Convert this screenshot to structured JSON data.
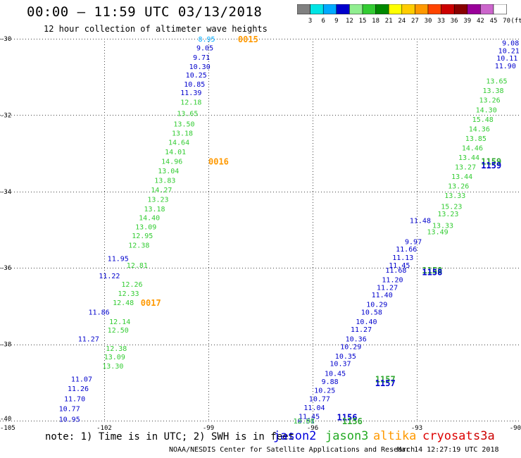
{
  "header": {
    "title": "00:00 – 11:59 UTC 03/13/2018",
    "subtitle": "12 hour collection of altimeter wave heights"
  },
  "colorbar": {
    "labels": [
      "3",
      "6",
      "9",
      "12",
      "15",
      "18",
      "21",
      "24",
      "27",
      "30",
      "33",
      "36",
      "39",
      "42",
      "45",
      "70",
      "(ft)"
    ],
    "colors": [
      "#808080",
      "#00e5e5",
      "#00aaff",
      "#0000cc",
      "#90ee90",
      "#33cc33",
      "#008800",
      "#ffff00",
      "#ffcc00",
      "#ff9900",
      "#ff4400",
      "#cc0000",
      "#880000",
      "#990099",
      "#cc66cc",
      "#ffffff"
    ]
  },
  "chart_data": {
    "type": "scatter",
    "title": "",
    "xlabel": "",
    "ylabel": "",
    "xlim": [
      -105,
      -90
    ],
    "ylim": [
      -40,
      -30
    ],
    "x_ticks": [
      "-105",
      "-102",
      "-99",
      "-96",
      "-93",
      "-90"
    ],
    "y_ticks": [
      "-30",
      "-32",
      "-34",
      "-36",
      "-38",
      "-40"
    ],
    "grid": true,
    "series": [
      {
        "name": "jason2",
        "color": "#0000cc",
        "points": [
          {
            "x": -99.1,
            "y": -30.23,
            "label": "9.05"
          },
          {
            "x": -99.2,
            "y": -30.48,
            "label": "9.71"
          },
          {
            "x": -99.25,
            "y": -30.72,
            "label": "10.30"
          },
          {
            "x": -99.35,
            "y": -30.94,
            "label": "10.25"
          },
          {
            "x": -99.4,
            "y": -31.18,
            "label": "10.85"
          },
          {
            "x": -99.5,
            "y": -31.4,
            "label": "11.39"
          },
          {
            "x": -101.6,
            "y": -35.75,
            "label": "11.95"
          },
          {
            "x": -101.85,
            "y": -36.2,
            "label": "11.22"
          },
          {
            "x": -102.15,
            "y": -37.15,
            "label": "11.86"
          },
          {
            "x": -102.45,
            "y": -37.85,
            "label": "11.27"
          },
          {
            "x": -102.65,
            "y": -38.9,
            "label": "11.07"
          },
          {
            "x": -102.75,
            "y": -39.15,
            "label": "11.26"
          },
          {
            "x": -102.85,
            "y": -39.42,
            "label": "11.70"
          },
          {
            "x": -103.0,
            "y": -39.68,
            "label": "10.77"
          },
          {
            "x": -103.0,
            "y": -39.95,
            "label": "10.95"
          },
          {
            "x": -92.9,
            "y": -34.75,
            "label": "11.48"
          },
          {
            "x": -93.1,
            "y": -35.3,
            "label": "9.97"
          },
          {
            "x": -93.3,
            "y": -35.5,
            "label": "11.66"
          },
          {
            "x": -93.4,
            "y": -35.72,
            "label": "11.13"
          },
          {
            "x": -93.5,
            "y": -35.92,
            "label": "11.45"
          },
          {
            "x": -93.6,
            "y": -36.05,
            "label": "11.68"
          },
          {
            "x": -93.7,
            "y": -36.3,
            "label": "11.20"
          },
          {
            "x": -93.85,
            "y": -36.5,
            "label": "11.27"
          },
          {
            "x": -94.0,
            "y": -36.7,
            "label": "11.40"
          },
          {
            "x": -94.15,
            "y": -36.95,
            "label": "10.29"
          },
          {
            "x": -94.3,
            "y": -37.15,
            "label": "10.58"
          },
          {
            "x": -94.45,
            "y": -37.4,
            "label": "10.40"
          },
          {
            "x": -94.6,
            "y": -37.6,
            "label": "11.27"
          },
          {
            "x": -94.75,
            "y": -37.85,
            "label": "10.36"
          },
          {
            "x": -94.9,
            "y": -38.05,
            "label": "10.29"
          },
          {
            "x": -95.05,
            "y": -38.3,
            "label": "10.35"
          },
          {
            "x": -95.2,
            "y": -38.5,
            "label": "10.37"
          },
          {
            "x": -95.35,
            "y": -38.75,
            "label": "10.45"
          },
          {
            "x": -95.5,
            "y": -38.97,
            "label": "9.88"
          },
          {
            "x": -95.65,
            "y": -39.2,
            "label": "10.25"
          },
          {
            "x": -95.8,
            "y": -39.42,
            "label": "10.77"
          },
          {
            "x": -95.95,
            "y": -39.65,
            "label": "11.04"
          },
          {
            "x": -96.1,
            "y": -39.88,
            "label": "11.45"
          },
          {
            "x": -96.25,
            "y": -40.0,
            "label": "10.51"
          },
          {
            "x": -90.3,
            "y": -30.1,
            "label": "9.08"
          },
          {
            "x": -90.35,
            "y": -30.3,
            "label": "10.21"
          },
          {
            "x": -90.4,
            "y": -30.5,
            "label": "10.11"
          },
          {
            "x": -90.45,
            "y": -30.7,
            "label": "11.90"
          }
        ]
      },
      {
        "name": "jason3",
        "color": "#33cc33",
        "points": [
          {
            "x": -99.5,
            "y": -31.65,
            "label": "12.18"
          },
          {
            "x": -99.6,
            "y": -31.95,
            "label": "13.65"
          },
          {
            "x": -99.7,
            "y": -32.22,
            "label": "13.50"
          },
          {
            "x": -99.75,
            "y": -32.46,
            "label": "13.18"
          },
          {
            "x": -99.85,
            "y": -32.7,
            "label": "14.64"
          },
          {
            "x": -99.95,
            "y": -32.95,
            "label": "14.01"
          },
          {
            "x": -100.05,
            "y": -33.2,
            "label": "14.96"
          },
          {
            "x": -100.15,
            "y": -33.45,
            "label": "13.04"
          },
          {
            "x": -100.25,
            "y": -33.7,
            "label": "13.83"
          },
          {
            "x": -100.35,
            "y": -33.95,
            "label": "14.27"
          },
          {
            "x": -100.45,
            "y": -34.2,
            "label": "13.23"
          },
          {
            "x": -100.55,
            "y": -34.45,
            "label": "13.18"
          },
          {
            "x": -100.7,
            "y": -34.68,
            "label": "14.40"
          },
          {
            "x": -100.8,
            "y": -34.92,
            "label": "13.09"
          },
          {
            "x": -100.9,
            "y": -35.15,
            "label": "12.95"
          },
          {
            "x": -101.0,
            "y": -35.4,
            "label": "12.38"
          },
          {
            "x": -101.05,
            "y": -35.92,
            "label": "12.81"
          },
          {
            "x": -101.2,
            "y": -36.42,
            "label": "12.26"
          },
          {
            "x": -101.3,
            "y": -36.66,
            "label": "12.33"
          },
          {
            "x": -101.45,
            "y": -36.9,
            "label": "12.48"
          },
          {
            "x": -101.55,
            "y": -37.4,
            "label": "12.14"
          },
          {
            "x": -101.6,
            "y": -37.62,
            "label": "12.50"
          },
          {
            "x": -101.65,
            "y": -38.1,
            "label": "12.38"
          },
          {
            "x": -101.7,
            "y": -38.32,
            "label": "13.09"
          },
          {
            "x": -101.75,
            "y": -38.56,
            "label": "13.30"
          },
          {
            "x": -96.25,
            "y": -40.0,
            "label": "12.08"
          },
          {
            "x": -92.0,
            "y": -34.38,
            "label": "15.23"
          },
          {
            "x": -92.1,
            "y": -34.58,
            "label": "13.23"
          },
          {
            "x": -92.25,
            "y": -34.88,
            "label": "13.33"
          },
          {
            "x": -92.4,
            "y": -35.05,
            "label": "13.49"
          },
          {
            "x": -91.9,
            "y": -34.1,
            "label": "13.33"
          },
          {
            "x": -91.8,
            "y": -33.85,
            "label": "13.26"
          },
          {
            "x": -91.7,
            "y": -33.6,
            "label": "13.44"
          },
          {
            "x": -91.6,
            "y": -33.35,
            "label": "13.27"
          },
          {
            "x": -91.5,
            "y": -33.1,
            "label": "13.44"
          },
          {
            "x": -91.4,
            "y": -32.85,
            "label": "14.46"
          },
          {
            "x": -91.3,
            "y": -32.6,
            "label": "13.85"
          },
          {
            "x": -91.2,
            "y": -32.35,
            "label": "14.36"
          },
          {
            "x": -91.1,
            "y": -32.1,
            "label": "15.48"
          },
          {
            "x": -91.0,
            "y": -31.85,
            "label": "14.30"
          },
          {
            "x": -90.9,
            "y": -31.6,
            "label": "13.26"
          },
          {
            "x": -90.8,
            "y": -31.35,
            "label": "13.38"
          },
          {
            "x": -90.7,
            "y": -31.1,
            "label": "13.65"
          }
        ]
      },
      {
        "name": "altika",
        "color": "#ff9900",
        "points": []
      },
      {
        "name": "cryosat",
        "color": "#dd0000",
        "points": []
      },
      {
        "name": "s3a",
        "color": "#cc0000",
        "points": []
      }
    ],
    "extra_points": [
      {
        "x": -99.05,
        "y": -30.0,
        "label": "8.95",
        "color": "#00aaff"
      }
    ],
    "time_labels": [
      {
        "x": -98.15,
        "y": -30.0,
        "label": "0015",
        "color": "#ff9900"
      },
      {
        "x": -99.0,
        "y": -33.2,
        "label": "0016",
        "color": "#ff9900"
      },
      {
        "x": -100.95,
        "y": -36.9,
        "label": "0017",
        "color": "#ff9900"
      },
      {
        "x": -95.3,
        "y": -39.9,
        "label": "1156",
        "color": "#0000cc"
      },
      {
        "x": -95.15,
        "y": -40.0,
        "label": "1156",
        "color": "#33aa33"
      },
      {
        "x": -94.2,
        "y": -38.9,
        "label": "1157",
        "color": "#33aa33"
      },
      {
        "x": -94.2,
        "y": -39.0,
        "label": "1157",
        "color": "#0000cc"
      },
      {
        "x": -92.85,
        "y": -36.05,
        "label": "1158",
        "color": "#33aa33"
      },
      {
        "x": -92.85,
        "y": -36.1,
        "label": "1158",
        "color": "#0000cc"
      },
      {
        "x": -91.15,
        "y": -33.2,
        "label": "1159",
        "color": "#33aa33"
      },
      {
        "x": -91.15,
        "y": -33.3,
        "label": "1159",
        "color": "#0000cc"
      }
    ]
  },
  "footer": {
    "note": "note: 1) Time is in UTC; 2) SWH is in feet",
    "legend": [
      {
        "label": "jason2",
        "color": "#0000dd"
      },
      {
        "label": "jason3",
        "color": "#22aa22"
      },
      {
        "label": "altika",
        "color": "#ff9900"
      },
      {
        "label": "cryosat",
        "color": "#dd0000"
      },
      {
        "label": "s3a",
        "color": "#cc0000"
      }
    ],
    "credit": "NOAA/NESDIS Center for Satellite Applications and Research",
    "timestamp": "Mar 14 12:27:19 UTC 2018"
  }
}
